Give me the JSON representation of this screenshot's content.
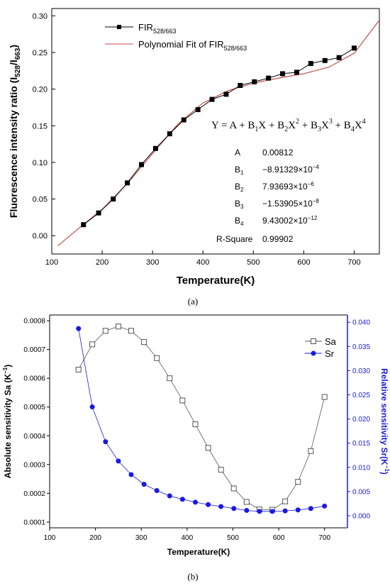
{
  "chart_data": [
    {
      "type": "line",
      "panel_label": "(a)",
      "xlabel": "Temperature(K)",
      "ylabel": "Fluorescence intensity ratio (I528/I663)",
      "ylabel_parts": {
        "main": "Fluorescence intensity ratio (I",
        "s1": "528",
        "mid": "/I",
        "s2": "663",
        "end": ")"
      },
      "xlim": [
        100,
        750
      ],
      "ylim": [
        -0.025,
        0.31
      ],
      "x_ticks": [
        100,
        200,
        300,
        400,
        500,
        600,
        700
      ],
      "y_ticks": [
        0.0,
        0.05,
        0.1,
        0.15,
        0.2,
        0.25,
        0.3
      ],
      "y_tick_labels": [
        "0.00",
        "0.05",
        "0.10",
        "0.15",
        "0.20",
        "0.25",
        "0.30"
      ],
      "legend_placement": "top-left",
      "series": [
        {
          "name": "FIR528/663",
          "name_parts": {
            "main": "FIR",
            "sub": "528/663"
          },
          "style": "line-square-marker",
          "color": "#000000",
          "x": [
            163,
            193,
            222,
            250,
            278,
            306,
            334,
            362,
            390,
            418,
            446,
            474,
            502,
            530,
            558,
            586,
            614,
            642,
            670,
            700
          ],
          "y": [
            0.015,
            0.031,
            0.05,
            0.072,
            0.097,
            0.119,
            0.139,
            0.158,
            0.172,
            0.186,
            0.193,
            0.205,
            0.21,
            0.215,
            0.221,
            0.223,
            0.235,
            0.239,
            0.243,
            0.256
          ]
        },
        {
          "name": "Polynomial Fit of FIR528/663",
          "name_parts": {
            "main": "Polynomial Fit of FIR",
            "sub": "528/663"
          },
          "style": "line",
          "color": "#c0504d",
          "x": [
            112,
            150,
            200,
            250,
            300,
            350,
            400,
            450,
            500,
            550,
            600,
            650,
            700,
            750
          ],
          "y": [
            -0.014,
            0.008,
            0.036,
            0.071,
            0.112,
            0.152,
            0.181,
            0.198,
            0.208,
            0.215,
            0.221,
            0.23,
            0.249,
            0.294
          ]
        }
      ],
      "equation": {
        "text": "Y = A + B1X + B2X2 + B3X3 + B4X4"
      },
      "fit_parameters": [
        {
          "name": "A",
          "value": "0.00812"
        },
        {
          "name": "B1",
          "value": "−8.91329×10−4"
        },
        {
          "name": "B2",
          "value": "7.93693×10−6"
        },
        {
          "name": "B3",
          "value": "−1.53905×10−8"
        },
        {
          "name": "B4",
          "value": "9.43002×10−12"
        }
      ],
      "r_square": {
        "label": "R-Square",
        "value": "0.99902"
      }
    },
    {
      "type": "line",
      "panel_label": "(b)",
      "xlabel": "Temperature(K)",
      "ylabel_left": "Absolute sensitivity Sa (K−1)",
      "ylabel_right": "Relative sensitivity Sr(K−1)",
      "xlim": [
        100,
        750
      ],
      "x_ticks": [
        100,
        200,
        300,
        400,
        500,
        600,
        700
      ],
      "ylim_left": [
        8e-05,
        0.00082
      ],
      "y_ticks_left": [
        "0.0001",
        "0.0002",
        "0.0003",
        "0.0004",
        "0.0005",
        "0.0006",
        "0.0007",
        "0.0008"
      ],
      "ylim_right": [
        -0.0025,
        0.0415
      ],
      "y_ticks_right": [
        "0.000",
        "0.005",
        "0.010",
        "0.015",
        "0.020",
        "0.025",
        "0.030",
        "0.035",
        "0.040"
      ],
      "legend_placement": "top-right",
      "series": [
        {
          "name": "Sa",
          "axis": "left",
          "style": "line-open-square",
          "color": "#555555",
          "x": [
            163,
            193,
            222,
            250,
            278,
            306,
            334,
            362,
            390,
            418,
            446,
            474,
            502,
            530,
            558,
            586,
            614,
            642,
            670,
            700
          ],
          "y": [
            0.00063,
            0.000718,
            0.000765,
            0.00078,
            0.000765,
            0.000726,
            0.00067,
            0.0006,
            0.000523,
            0.00044,
            0.000358,
            0.000282,
            0.000217,
            0.00017,
            0.000144,
            0.000143,
            0.000172,
            0.00024,
            0.000347,
            0.000535
          ]
        },
        {
          "name": "Sr",
          "axis": "right",
          "style": "line-filled-circle",
          "color": "#1a1ae0",
          "x": [
            163,
            193,
            222,
            250,
            278,
            306,
            334,
            362,
            390,
            418,
            446,
            474,
            502,
            530,
            558,
            586,
            614,
            642,
            670,
            700
          ],
          "y": [
            0.0387,
            0.0225,
            0.0153,
            0.0113,
            0.0085,
            0.0065,
            0.0052,
            0.0041,
            0.0034,
            0.0028,
            0.0023,
            0.0019,
            0.0015,
            0.0011,
            0.0009,
            0.0009,
            0.001,
            0.0012,
            0.0015,
            0.002
          ]
        }
      ]
    }
  ]
}
